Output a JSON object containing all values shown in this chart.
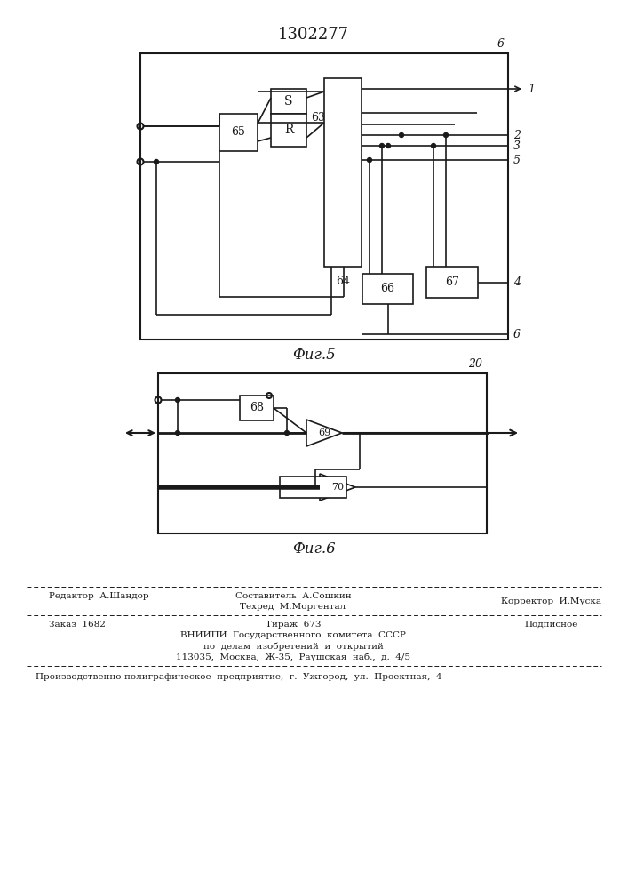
{
  "title": "1302277",
  "fig5_label": "Фиг.5",
  "fig6_label": "Фиг.6",
  "line_color": "#1a1a1a",
  "footer": {
    "editor": "Редактор  А.Шандор",
    "compiler": "Составитель  А.Сошкин",
    "techred": "Техред  М.Моргентал",
    "corrector": "Корректор  И.Муска",
    "order": "Заказ  1682",
    "tirazh": "Тираж  673",
    "podpisnoe": "Подписное",
    "vniipи_line1": "ВНИИПИ  Государственного  комитета  СССР",
    "vniipи_line2": "по  делам  изобретений  и  открытий",
    "vniipи_line3": "113035,  Москва,  Ж-35,  Раушская  наб.,  д.  4/5",
    "last_line": "Производственно-полиграфическое  предприятие,  г.  Ужгород,  ул.  Проектная,  4"
  }
}
